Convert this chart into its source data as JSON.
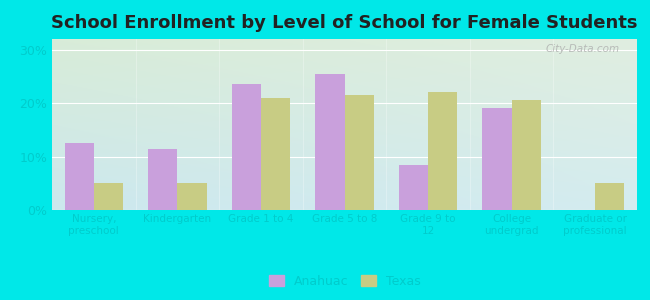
{
  "title": "School Enrollment by Level of School for Female Students",
  "categories": [
    "Nursery,\npreschool",
    "Kindergarten",
    "Grade 1 to 4",
    "Grade 5 to 8",
    "Grade 9 to\n12",
    "College\nundergrad",
    "Graduate or\nprofessional"
  ],
  "anahuac": [
    12.5,
    11.5,
    23.5,
    25.5,
    8.5,
    19.0,
    0.0
  ],
  "texas": [
    5.0,
    5.0,
    21.0,
    21.5,
    22.0,
    20.5,
    5.0
  ],
  "anahuac_color": "#c9a0dc",
  "texas_color": "#c8cc84",
  "background_outer": "#00e8e8",
  "background_grad_topleft": "#d8ecd8",
  "background_grad_bottomright": "#c8e8ec",
  "yticks": [
    0,
    10,
    20,
    30
  ],
  "ylim": [
    0,
    32
  ],
  "bar_width": 0.35,
  "title_fontsize": 13,
  "tick_color": "#00cccc",
  "legend_labels": [
    "Anahuac",
    "Texas"
  ],
  "watermark": "City-Data.com"
}
